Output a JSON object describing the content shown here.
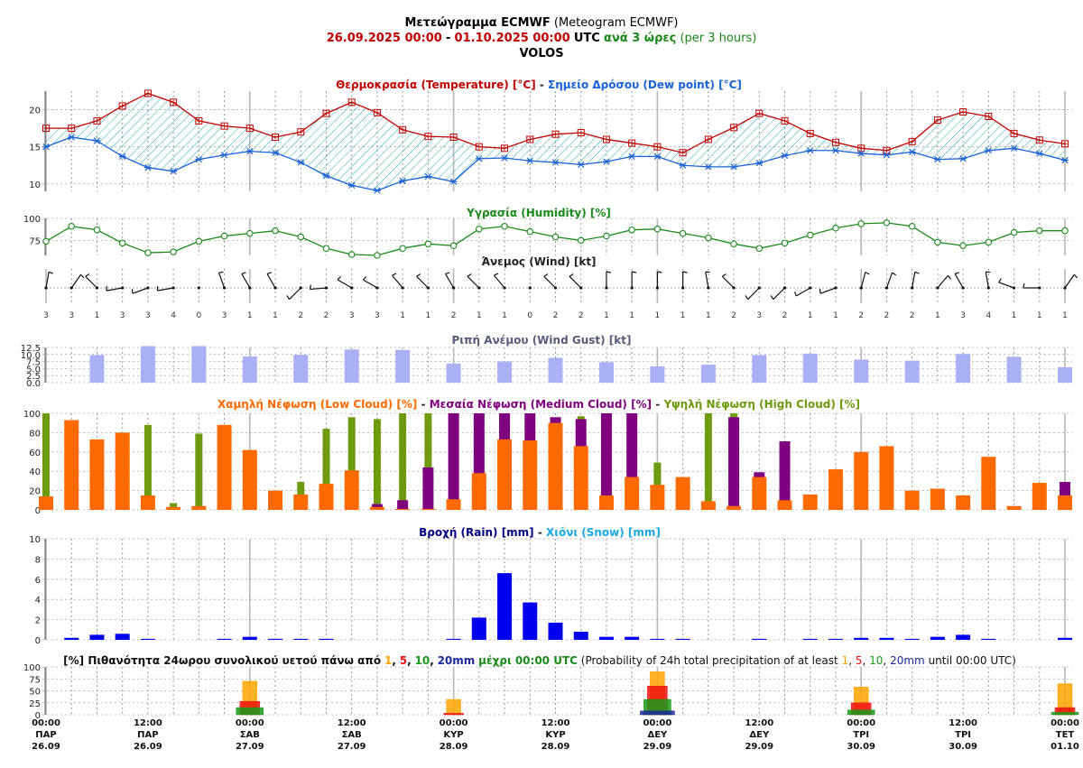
{
  "header": {
    "title_bold": "Μετεώγραμμα ECMWF",
    "title_rest": "(Meteogram ECMWF)",
    "date_from": "26.09.2025 00:00",
    "date_sep": "-",
    "date_to": "01.10.2025 00:00",
    "utc": "UTC",
    "step_bold": "ανά 3 ώρες",
    "step_rest": "(per 3 hours)",
    "location": "VOLOS"
  },
  "colors": {
    "temp": "#c00000",
    "dew": "#1a63d6",
    "hatch": "#26a8b0",
    "humidity": "#1a8a1a",
    "gust": "#aab0f5",
    "gust_title": "#5a5a7a",
    "low": "#ff6a00",
    "medium": "#7f007f",
    "high": "#6e9a10",
    "rain": "#0000ee",
    "rain_title": "#000080",
    "snow": "#1aa8e0",
    "p1": "#ffa500",
    "p5": "#ee1111",
    "p10": "#1a9a1a",
    "p20": "#1a2a9a"
  },
  "panels": {
    "temp": {
      "title_a": "Θερμοκρασία (Temperature) [°C]",
      "sep": "-",
      "title_b": "Σημείο Δρόσου (Dew point) [°C]",
      "ticks": [
        "10",
        "15",
        "20"
      ]
    },
    "humidity": {
      "title": "Υγρασία (Humidity) [%]",
      "ticks": [
        "75",
        "100"
      ]
    },
    "wind": {
      "title": "Άνεμος (Wind) [kt]"
    },
    "gust": {
      "title": "Ριπή Ανέμου (Wind Gust) [kt]",
      "ticks": [
        "0.0",
        "2.5",
        "5.0",
        "7.5",
        "10.0",
        "12.5"
      ]
    },
    "cloud": {
      "title_low": "Χαμηλή Νέφωση (Low Cloud) [%]",
      "sep1": "-",
      "title_med": "Μεσαία Νέφωση (Medium Cloud) [%]",
      "sep2": "-",
      "title_high": "Υψηλή Νέφωση (High Cloud) [%]",
      "ticks": [
        "0",
        "20",
        "40",
        "60",
        "80",
        "100"
      ]
    },
    "precip": {
      "title_rain": "Βροχή (Rain) [mm]",
      "sep": "-",
      "title_snow": "Χιόνι (Snow) [mm]",
      "ticks": [
        "0",
        "2",
        "4",
        "6",
        "8",
        "10"
      ]
    },
    "prob": {
      "t_lead": "[%] Πιθανότητα 24ωρου συνολικού υετού πάνω από",
      "t_1": "1",
      "t_c1": ",",
      "t_5": "5",
      "t_c2": ",",
      "t_10": "10",
      "t_c3": ",",
      "t_20": "20mm",
      "t_mid": "μέχρι 00:00 UTC",
      "t_eng": "(Probability of 24h total precipitation of at least",
      "e_1": "1",
      "e_c1": ",",
      "e_5": "5",
      "e_c2": ",",
      "e_10": "10",
      "e_c3": ",",
      "e_20": "20mm",
      "e_end": "until 00:00 UTC)",
      "ticks": [
        "0",
        "25",
        "50",
        "75",
        "100"
      ]
    }
  },
  "time_axis": [
    {
      "time": "00:00",
      "day": "ΠΑΡ",
      "date": "26.09"
    },
    {
      "time": "12:00",
      "day": "ΠΑΡ",
      "date": "26.09"
    },
    {
      "time": "00:00",
      "day": "ΣΑΒ",
      "date": "27.09"
    },
    {
      "time": "12:00",
      "day": "ΣΑΒ",
      "date": "27.09"
    },
    {
      "time": "00:00",
      "day": "ΚΥΡ",
      "date": "28.09"
    },
    {
      "time": "12:00",
      "day": "ΚΥΡ",
      "date": "28.09"
    },
    {
      "time": "00:00",
      "day": "ΔΕΥ",
      "date": "29.09"
    },
    {
      "time": "12:00",
      "day": "ΔΕΥ",
      "date": "29.09"
    },
    {
      "time": "00:00",
      "day": "ΤΡΙ",
      "date": "30.09"
    },
    {
      "time": "12:00",
      "day": "ΤΡΙ",
      "date": "30.09"
    },
    {
      "time": "00:00",
      "day": "ΤΕΤ",
      "date": "01.10"
    }
  ],
  "chart_data": {
    "type": "line",
    "x_step_hours": 3,
    "steps": 41,
    "temperature": [
      17.5,
      17.5,
      18.5,
      20.5,
      22.2,
      21,
      18.5,
      17.8,
      17.5,
      16.3,
      17,
      19.5,
      21,
      19.6,
      17.3,
      16.4,
      16.3,
      15,
      14.8,
      16,
      16.7,
      16.9,
      16,
      15.5,
      15,
      14.2,
      16,
      17.6,
      19.5,
      18.5,
      16.8,
      15.6,
      14.8,
      14.5,
      15.7,
      18.6,
      19.7,
      19.1,
      16.8,
      15.9,
      15.4
    ],
    "dew_point": [
      15,
      16.3,
      15.8,
      13.7,
      12.2,
      11.7,
      13.3,
      13.9,
      14.4,
      14.2,
      12.9,
      11.1,
      9.8,
      9.1,
      10.4,
      11,
      10.3,
      13.4,
      13.5,
      13.1,
      12.9,
      12.6,
      13,
      13.7,
      13.7,
      12.5,
      12.3,
      12.3,
      12.8,
      13.8,
      14.5,
      14.5,
      14.1,
      13.9,
      14.3,
      13.3,
      13.4,
      14.5,
      14.8,
      14.1,
      13.2
    ],
    "temp_ylim": [
      9,
      22.5
    ],
    "humidity": [
      74,
      91,
      87,
      72,
      61,
      62,
      74,
      80,
      83,
      86,
      79,
      66,
      59,
      58,
      66,
      71,
      69,
      88,
      91,
      85,
      79,
      75,
      80,
      87,
      88,
      83,
      78,
      71,
      66,
      72,
      81,
      89,
      94,
      95,
      91,
      73,
      69,
      73,
      84,
      86,
      86
    ],
    "humidity_ylim": [
      58,
      100
    ],
    "wind_speed": [
      3,
      3,
      1,
      3,
      3,
      4,
      0,
      3,
      1,
      1,
      2,
      2,
      3,
      3,
      1,
      1,
      2,
      1,
      1,
      0,
      2,
      2,
      1,
      1,
      1,
      1,
      1,
      2,
      3,
      2,
      1,
      1,
      2,
      2,
      2,
      1,
      3,
      4,
      1,
      1,
      1
    ],
    "wind_dir_deg": [
      10,
      35,
      315,
      260,
      250,
      260,
      0,
      340,
      330,
      330,
      225,
      265,
      300,
      300,
      320,
      315,
      330,
      315,
      320,
      0,
      315,
      315,
      0,
      0,
      0,
      0,
      350,
      315,
      225,
      225,
      240,
      250,
      15,
      20,
      10,
      40,
      330,
      350,
      290,
      270,
      35
    ],
    "gust": [
      null,
      null,
      9.8,
      null,
      13,
      null,
      13,
      null,
      9.3,
      null,
      9.9,
      null,
      11.8,
      null,
      11.6,
      null,
      6.8,
      null,
      7.5,
      null,
      8.8,
      null,
      7.3,
      null,
      5.8,
      null,
      6.4,
      null,
      9.8,
      null,
      10.3,
      null,
      8.2,
      null,
      7.8,
      null,
      10.2,
      null,
      9.2,
      null,
      5.5
    ],
    "gust_ylim": [
      0,
      12.5
    ],
    "low_cloud": [
      14,
      93,
      73,
      80,
      15,
      3,
      4,
      88,
      62,
      20,
      16,
      27,
      41,
      3,
      1,
      1,
      11,
      38,
      73,
      72,
      90,
      66,
      15,
      34,
      26,
      34,
      9,
      4,
      34,
      10,
      16,
      42,
      60,
      66,
      20,
      22,
      15,
      55,
      4,
      28,
      15
    ],
    "medium_cloud": [
      0,
      0,
      0,
      0,
      0,
      0,
      0,
      0,
      0,
      0,
      0,
      0,
      0,
      6,
      10,
      44,
      100,
      100,
      100,
      100,
      96,
      94,
      100,
      100,
      0,
      0,
      0,
      96,
      39,
      71,
      0,
      0,
      0,
      0,
      0,
      0,
      0,
      0,
      0,
      0,
      29
    ],
    "high_cloud": [
      100,
      0,
      0,
      0,
      88,
      7,
      79,
      0,
      0,
      0,
      29,
      84,
      96,
      94,
      100,
      100,
      0,
      0,
      0,
      0,
      0,
      97,
      0,
      0,
      49,
      0,
      100,
      100,
      0,
      0,
      0,
      0,
      0,
      0,
      0,
      0,
      0,
      0,
      0,
      0,
      0
    ],
    "rain": [
      0,
      0.2,
      0.5,
      0.6,
      0.1,
      0,
      0,
      0.1,
      0.3,
      0.1,
      0.1,
      0.1,
      0,
      0,
      0,
      0,
      0.1,
      2.2,
      6.6,
      3.7,
      1.7,
      0.8,
      0.3,
      0.3,
      0.1,
      0.1,
      0,
      0,
      0.1,
      0,
      0.1,
      0.1,
      0.2,
      0.2,
      0.1,
      0.3,
      0.5,
      0.1,
      0,
      0,
      0.2
    ],
    "snow": [],
    "precip_ylim": [
      0,
      10
    ],
    "prob_24h": [
      {
        "date": "27.09",
        "p1": 70,
        "p5": 28,
        "p10": 15,
        "p20": 0
      },
      {
        "date": "28.09",
        "p1": 32,
        "p5": 3,
        "p10": 0,
        "p20": 0
      },
      {
        "date": "29.09",
        "p1": 90,
        "p5": 60,
        "p10": 32,
        "p20": 8
      },
      {
        "date": "30.09",
        "p1": 58,
        "p5": 25,
        "p10": 10,
        "p20": 0
      },
      {
        "date": "01.10",
        "p1": 65,
        "p5": 15,
        "p10": 5,
        "p20": 0
      }
    ],
    "prob_ylim": [
      0,
      100
    ]
  }
}
